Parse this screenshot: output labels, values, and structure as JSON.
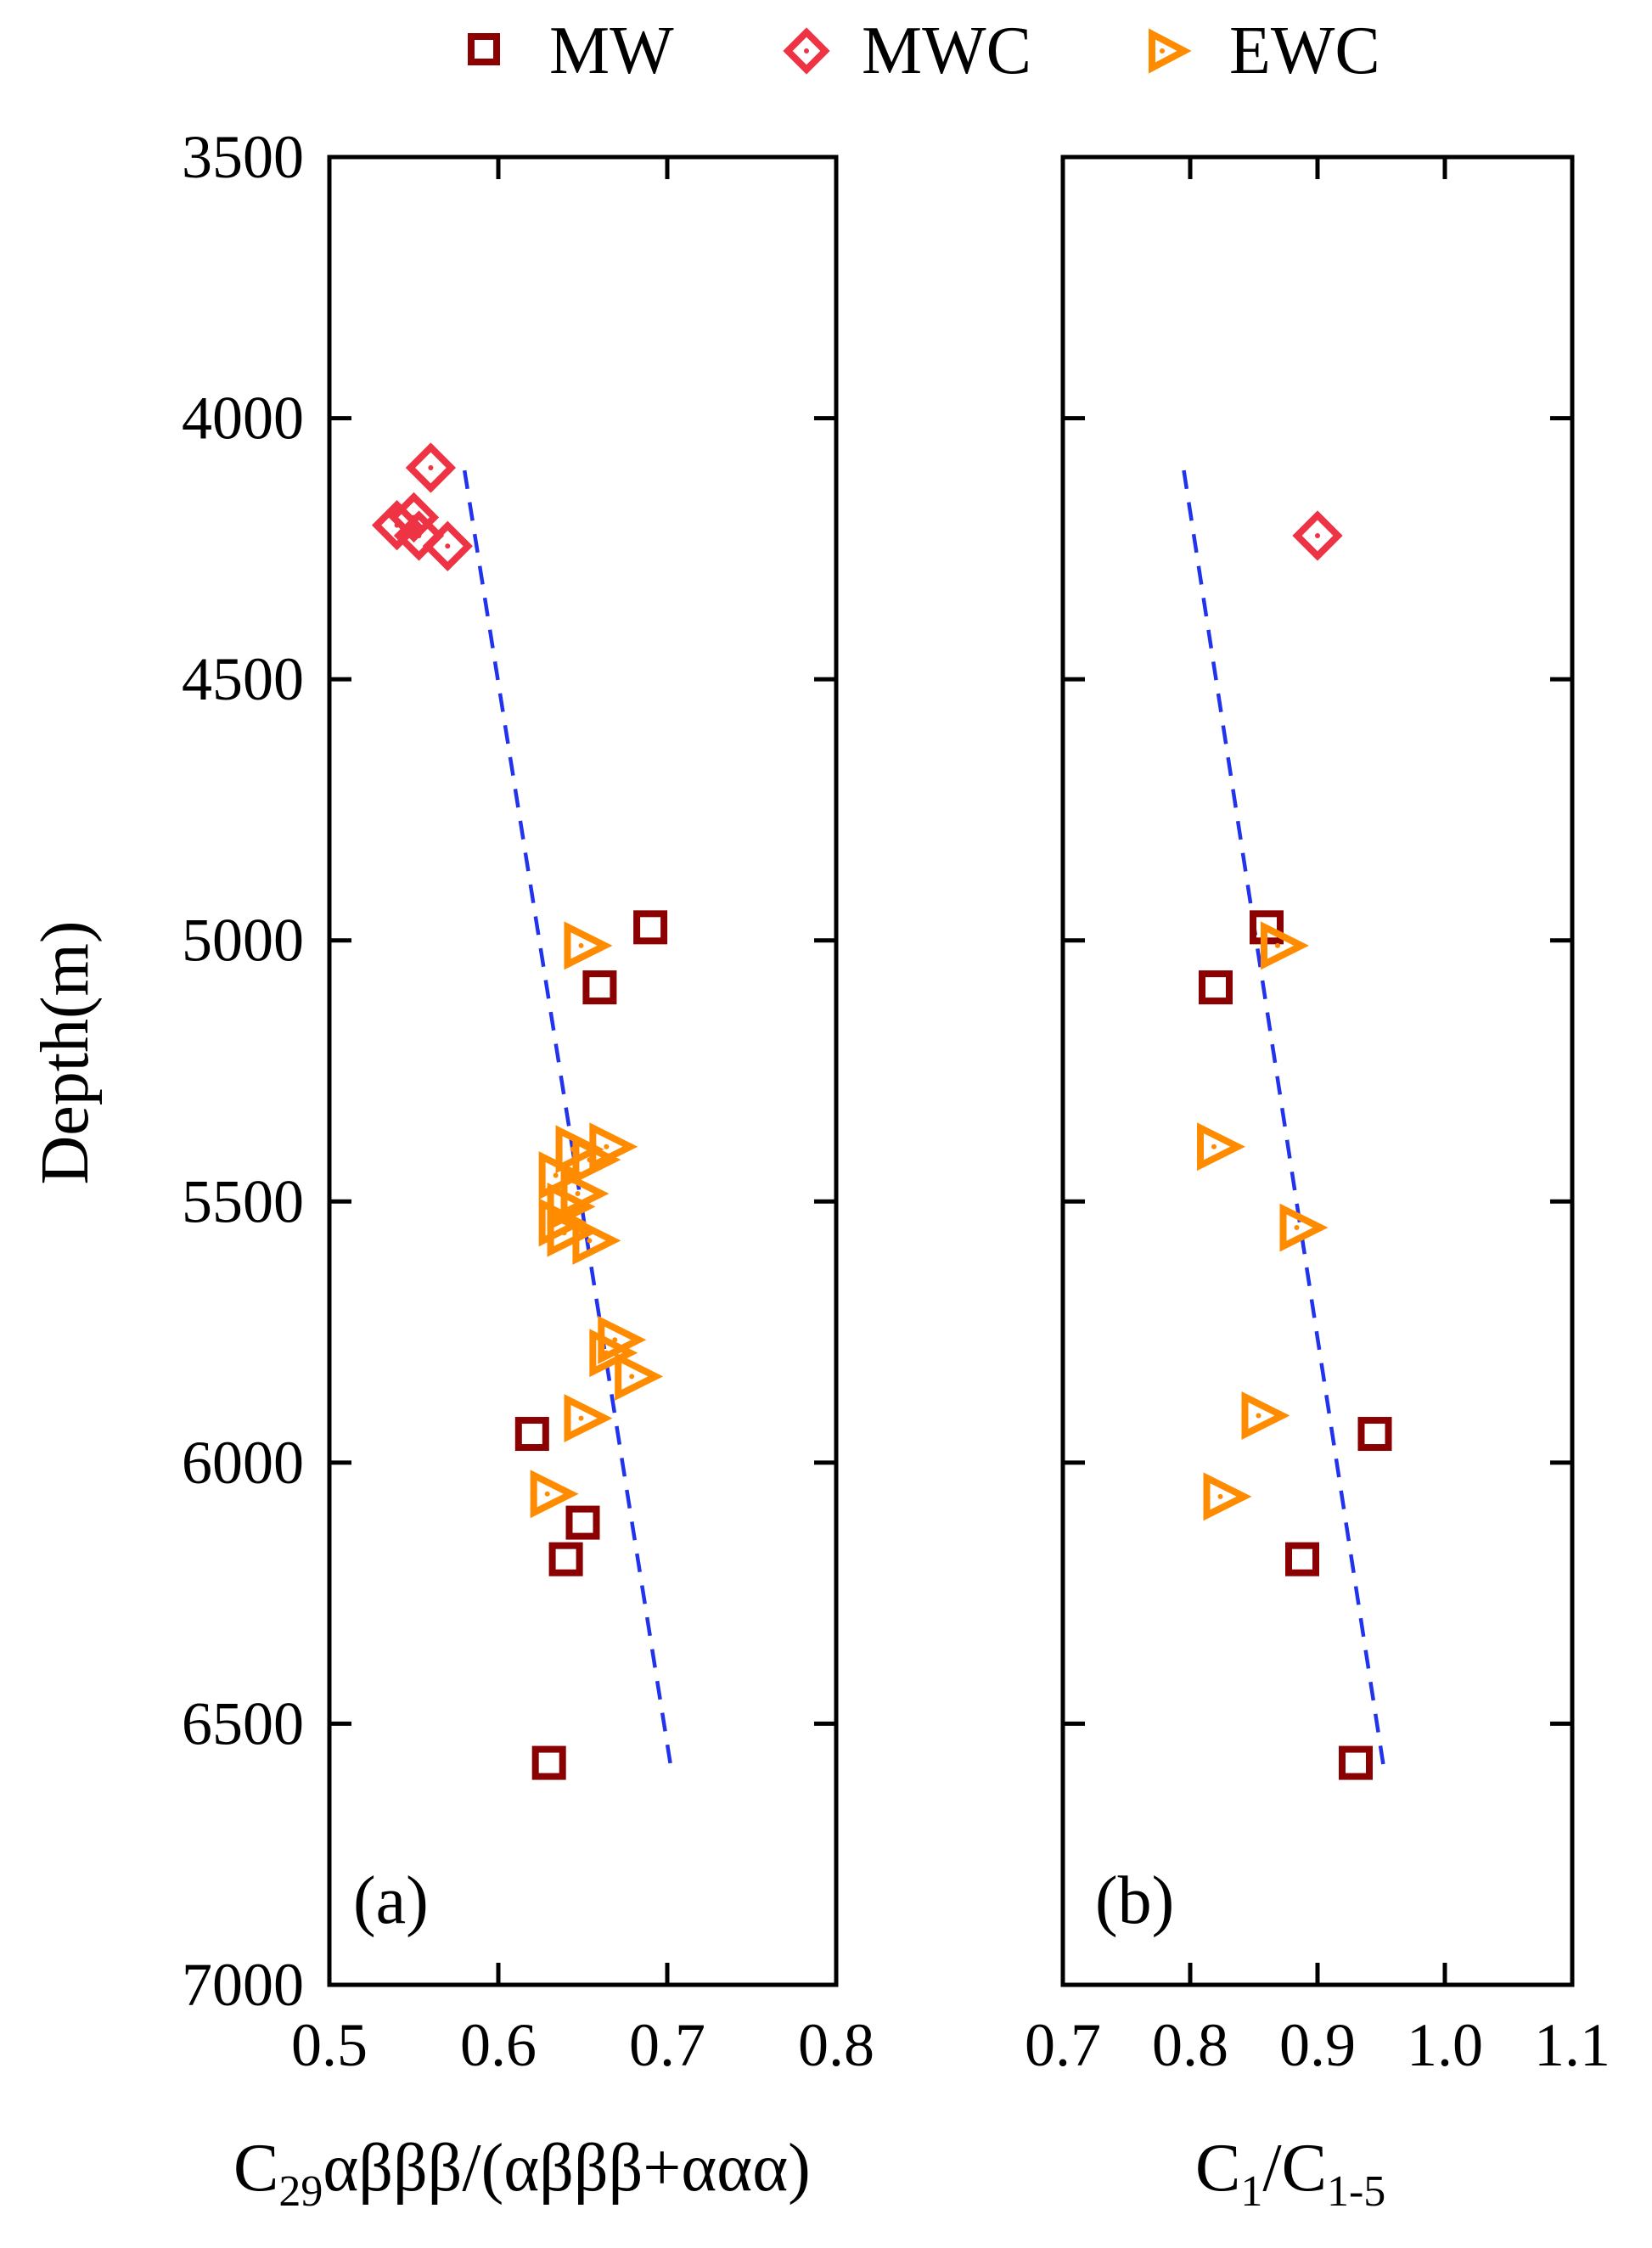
{
  "legend": [
    {
      "name": "MW",
      "marker": "square",
      "color": "#8b0000"
    },
    {
      "name": "MWC",
      "marker": "diamond",
      "color": "#ee3344"
    },
    {
      "name": "EWC",
      "marker": "triangle-right",
      "color": "#ff8c00"
    }
  ],
  "chart_data": [
    {
      "type": "scatter",
      "panel_label": "(a)",
      "xlabel": {
        "base": "C",
        "sub": "29",
        "rest": "αβββ/(αβββ+ααα)"
      },
      "ylabel": "Depth(m)",
      "xlim": [
        0.5,
        0.8
      ],
      "ylim": [
        3500,
        7000
      ],
      "y_inverted": true,
      "xticks": [
        "0.5",
        "0.6",
        "0.7",
        "0.8"
      ],
      "yticks": [
        "3500",
        "4000",
        "4500",
        "5000",
        "5500",
        "6000",
        "6500",
        "7000"
      ],
      "series": [
        {
          "name": "MW",
          "points": [
            [
              0.69,
              4975
            ],
            [
              0.66,
              5090
            ],
            [
              0.62,
              5945
            ],
            [
              0.65,
              6115
            ],
            [
              0.64,
              6185
            ],
            [
              0.63,
              6575
            ]
          ]
        },
        {
          "name": "MWC",
          "points": [
            [
              0.56,
              4095
            ],
            [
              0.55,
              4190
            ],
            [
              0.54,
              4205
            ],
            [
              0.553,
              4225
            ],
            [
              0.57,
              4245
            ]
          ]
        },
        {
          "name": "EWC",
          "points": [
            [
              0.65,
              5010
            ],
            [
              0.665,
              5395
            ],
            [
              0.645,
              5400
            ],
            [
              0.655,
              5420
            ],
            [
              0.635,
              5450
            ],
            [
              0.648,
              5485
            ],
            [
              0.64,
              5510
            ],
            [
              0.635,
              5540
            ],
            [
              0.64,
              5560
            ],
            [
              0.655,
              5575
            ],
            [
              0.67,
              5765
            ],
            [
              0.665,
              5790
            ],
            [
              0.68,
              5835
            ],
            [
              0.65,
              5915
            ],
            [
              0.63,
              6060
            ]
          ]
        }
      ],
      "trend": {
        "points": [
          [
            0.58,
            4100
          ],
          [
            0.703,
            6600
          ]
        ]
      }
    },
    {
      "type": "scatter",
      "panel_label": "(b)",
      "xlabel": {
        "base": "C",
        "sub": "1",
        "mid": "/C",
        "sub2": "1-5"
      },
      "xlim": [
        0.7,
        1.1
      ],
      "ylim": [
        3500,
        7000
      ],
      "y_inverted": true,
      "xticks": [
        "0.7",
        "0.8",
        "0.9",
        "1.0",
        "1.1"
      ],
      "series": [
        {
          "name": "MW",
          "points": [
            [
              0.86,
              4975
            ],
            [
              0.82,
              5090
            ],
            [
              0.945,
              5945
            ],
            [
              0.888,
              6185
            ],
            [
              0.93,
              6575
            ]
          ]
        },
        {
          "name": "MWC",
          "points": [
            [
              0.9,
              4225
            ]
          ]
        },
        {
          "name": "EWC",
          "points": [
            [
              0.87,
              5010
            ],
            [
              0.82,
              5395
            ],
            [
              0.885,
              5550
            ],
            [
              0.855,
              5910
            ],
            [
              0.825,
              6065
            ]
          ]
        }
      ],
      "trend": {
        "points": [
          [
            0.795,
            4100
          ],
          [
            0.953,
            6600
          ]
        ]
      }
    }
  ]
}
